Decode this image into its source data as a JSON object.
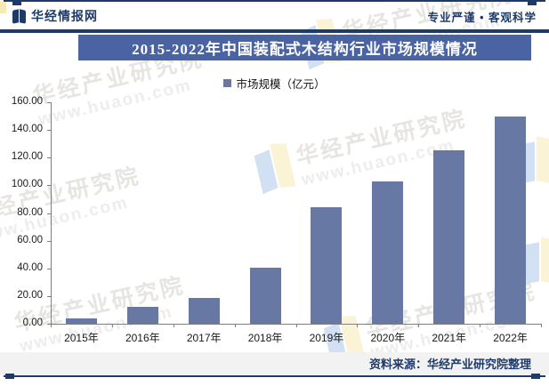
{
  "header": {
    "brand": "华经情报网",
    "slogan": "专业严谨 • 客观科学"
  },
  "banner": {
    "title": "2015-2022年中国装配式木结构行业市场规模情况"
  },
  "legend": {
    "label": "市场规模（亿元）"
  },
  "footer": {
    "source": "资料来源：华经产业研究院整理"
  },
  "watermark": {
    "text": "华经产业研究院",
    "url": "www.huaon.com"
  },
  "colors": {
    "navy": "#1e3a68",
    "banner_bg": "#4a64a3",
    "bar": "#6878a4",
    "footer_bg": "#f2f2f2",
    "axis": "#7f7f7f"
  },
  "chart_data": {
    "type": "bar",
    "title": "2015-2022年中国装配式木结构行业市场规模情况",
    "legend_entries": [
      "市场规模（亿元）"
    ],
    "legend_position": "top",
    "categories": [
      "2015年",
      "2016年",
      "2017年",
      "2018年",
      "2019年",
      "2020年",
      "2021年",
      "2022年"
    ],
    "series": [
      {
        "name": "市场规模（亿元）",
        "values": [
          4,
          12.5,
          18.5,
          40.5,
          84,
          103,
          125,
          150
        ]
      }
    ],
    "xlabel": "",
    "ylabel": "",
    "ylim": [
      0,
      160
    ],
    "ytick_step": 20,
    "yticks": [
      "0.00",
      "20.00",
      "40.00",
      "60.00",
      "80.00",
      "100.00",
      "120.00",
      "140.00",
      "160.00"
    ],
    "grid": false
  }
}
